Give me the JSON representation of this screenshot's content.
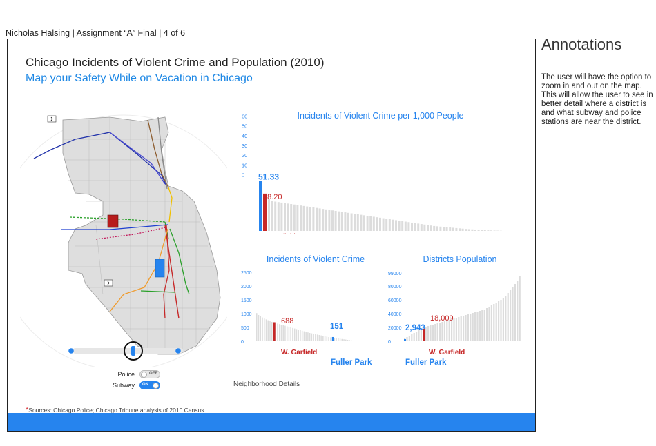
{
  "header": {
    "caption": "Nicholas Halsing | Assignment “A” Final | 4 of 6"
  },
  "app": {
    "title": "Chicago Incidents of Violent Crime and Population (2010)",
    "subtitle": "Map your Safety While on Vacation in Chicago"
  },
  "colors": {
    "accent_blue": "#2684ee",
    "highlight_red": "#c62828",
    "bar_gray": "#dcdcdc",
    "map_fill": "#dedede"
  },
  "controls": {
    "police_label": "Police",
    "police_state": "OFF",
    "subway_label": "Subway",
    "subway_state": "ON",
    "neighborhood_link": "Neighborhood Details"
  },
  "sources": {
    "marker": "*",
    "text": "Sources: Chicago Police; Chicago Tribune analysis of 2010 Census"
  },
  "annotations": {
    "title": "Annotations",
    "text": "The user will have the option to zoom in and out on the map. This will allow the user to see in better detail where a district is and what subway and police stations are near the district."
  },
  "chart_data": [
    {
      "type": "bar",
      "title": "Incidents of Violent Crime per 1,000 People",
      "y_ticks": [
        "60",
        "50",
        "40",
        "30",
        "20",
        "10",
        "0"
      ],
      "ylim": [
        0,
        60
      ],
      "highlight": [
        {
          "label": "Fuller Park",
          "value": 51.33,
          "value_label": "51.33",
          "color": "#2684ee"
        },
        {
          "label": "W.Garfield",
          "value": 38.2,
          "value_label": "38.20",
          "color": "#c62828"
        }
      ],
      "others": [
        33,
        31,
        30,
        29.5,
        29,
        28.5,
        28,
        27.5,
        27,
        26.5,
        26,
        25.5,
        25,
        24.5,
        24,
        23.5,
        23,
        22.5,
        22,
        21.5,
        21,
        20.5,
        20,
        19.5,
        19,
        18.5,
        18,
        17.5,
        17,
        16.5,
        16,
        15.5,
        15,
        14.5,
        14,
        13.5,
        13,
        12.5,
        12,
        11.5,
        11,
        10.5,
        10,
        9.5,
        9,
        8.5,
        8,
        7.5,
        7,
        6.5,
        6,
        5.5,
        5,
        4.7,
        4.4,
        4.1,
        3.8,
        3.5,
        3.2,
        2.9,
        2.6,
        2.3,
        2.0,
        1.8,
        1.6,
        1.4,
        1.2,
        1.0,
        0.8,
        0.6,
        0.5,
        0.4,
        0.3,
        0.2
      ]
    },
    {
      "type": "bar",
      "title": "Incidents of Violent Crime",
      "y_ticks": [
        "2500",
        "2000",
        "1500",
        "1000",
        "500",
        "0"
      ],
      "ylim": [
        0,
        2500
      ],
      "highlight": [
        {
          "label": "W. Garfield",
          "value": 688,
          "value_label": "688",
          "color": "#c62828",
          "rank": 9
        },
        {
          "label": "Fuller Park",
          "value": 151,
          "value_label": "151",
          "color": "#2684ee",
          "rank": 40
        }
      ],
      "others": [
        1020,
        950,
        900,
        860,
        820,
        790,
        760,
        730,
        700,
        680,
        660,
        640,
        620,
        600,
        580,
        560,
        540,
        520,
        500,
        480,
        460,
        440,
        420,
        400,
        380,
        360,
        340,
        320,
        300,
        285,
        270,
        255,
        240,
        225,
        210,
        195,
        180,
        165,
        150,
        140,
        130,
        120,
        110,
        100,
        90,
        80,
        70,
        60,
        50,
        40,
        30
      ]
    },
    {
      "type": "bar",
      "title": "Districts Population",
      "y_ticks": [
        "99000",
        "80000",
        "60000",
        "40000",
        "20000",
        "0"
      ],
      "ylim": [
        0,
        100000
      ],
      "highlight": [
        {
          "label": "Fuller Park",
          "value": 2943,
          "value_label": "2,943",
          "color": "#2684ee",
          "rank": 0
        },
        {
          "label": "W. Garfield",
          "value": 18009,
          "value_label": "18,009",
          "color": "#c62828",
          "rank": 8
        }
      ],
      "others": [
        4000,
        6000,
        8000,
        10000,
        12000,
        14000,
        16000,
        19000,
        20000,
        21000,
        22000,
        23000,
        24000,
        25000,
        26000,
        27000,
        28000,
        29000,
        30000,
        31000,
        32000,
        33000,
        34000,
        35000,
        36000,
        37000,
        38000,
        39000,
        40000,
        41000,
        42000,
        43000,
        44000,
        45000,
        46000,
        48000,
        50000,
        52000,
        54000,
        56000,
        58000,
        60000,
        63000,
        66000,
        70000,
        74000,
        78000,
        83000,
        88000,
        95000
      ]
    }
  ]
}
